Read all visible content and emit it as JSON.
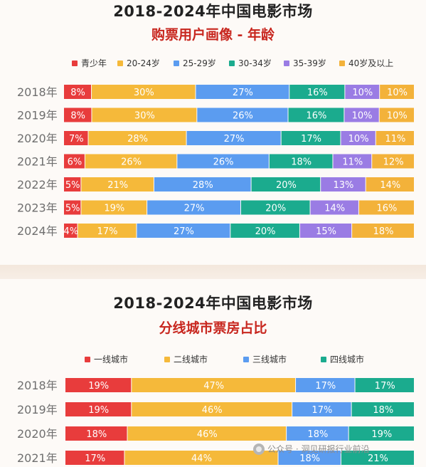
{
  "colors": {
    "green": "#1bab8e",
    "yellow": "#f5b93a",
    "blue": "#5b9cf0",
    "purple": "#9a7ce4",
    "red": "#e83c3c",
    "gold": "#f3b23a",
    "title": "#222222",
    "subtitle": "#c8271f"
  },
  "age_panel": {
    "title": "2018-2024年中国电影市场",
    "subtitle": "购票用户画像 - 年龄"
  },
  "city_panel": {
    "title": "2018-2024年中国电影市场",
    "subtitle": "分线城市票房占比"
  },
  "watermark": "公众号 · 洞见研报行业前沿",
  "chart_data": [
    {
      "type": "bar",
      "stacked": true,
      "orientation": "horizontal",
      "title": "2018-2024年中国电影市场",
      "subtitle": "购票用户画像 - 年龄",
      "categories": [
        "2018年",
        "2019年",
        "2020年",
        "2021年",
        "2022年",
        "2023年",
        "2024年"
      ],
      "unit": "%",
      "legend_position": "top",
      "series": [
        {
          "name": "青少年",
          "color": "#e83c3c",
          "values": [
            8,
            8,
            7,
            6,
            5,
            5,
            4
          ]
        },
        {
          "name": "20-24岁",
          "color": "#f5b93a",
          "values": [
            30,
            30,
            28,
            26,
            21,
            19,
            17
          ]
        },
        {
          "name": "25-29岁",
          "color": "#5b9cf0",
          "values": [
            27,
            26,
            27,
            26,
            28,
            27,
            27
          ]
        },
        {
          "name": "30-34岁",
          "color": "#1bab8e",
          "values": [
            16,
            16,
            17,
            18,
            20,
            20,
            20
          ]
        },
        {
          "name": "35-39岁",
          "color": "#9a7ce4",
          "values": [
            10,
            10,
            10,
            11,
            13,
            14,
            15
          ]
        },
        {
          "name": "40岁及以上",
          "color": "#f3b23a",
          "values": [
            10,
            10,
            11,
            12,
            14,
            16,
            18
          ]
        }
      ]
    },
    {
      "type": "bar",
      "stacked": true,
      "orientation": "horizontal",
      "title": "2018-2024年中国电影市场",
      "subtitle": "分线城市票房占比",
      "categories": [
        "2018年",
        "2019年",
        "2020年",
        "2021年"
      ],
      "unit": "%",
      "legend_position": "top",
      "series": [
        {
          "name": "一线城市",
          "color": "#e83c3c",
          "values": [
            19,
            19,
            18,
            17
          ]
        },
        {
          "name": "二线城市",
          "color": "#f5b93a",
          "values": [
            47,
            46,
            46,
            44
          ]
        },
        {
          "name": "三线城市",
          "color": "#5b9cf0",
          "values": [
            17,
            17,
            18,
            18
          ]
        },
        {
          "name": "四线城市",
          "color": "#1bab8e",
          "values": [
            17,
            18,
            19,
            21
          ]
        }
      ]
    }
  ]
}
